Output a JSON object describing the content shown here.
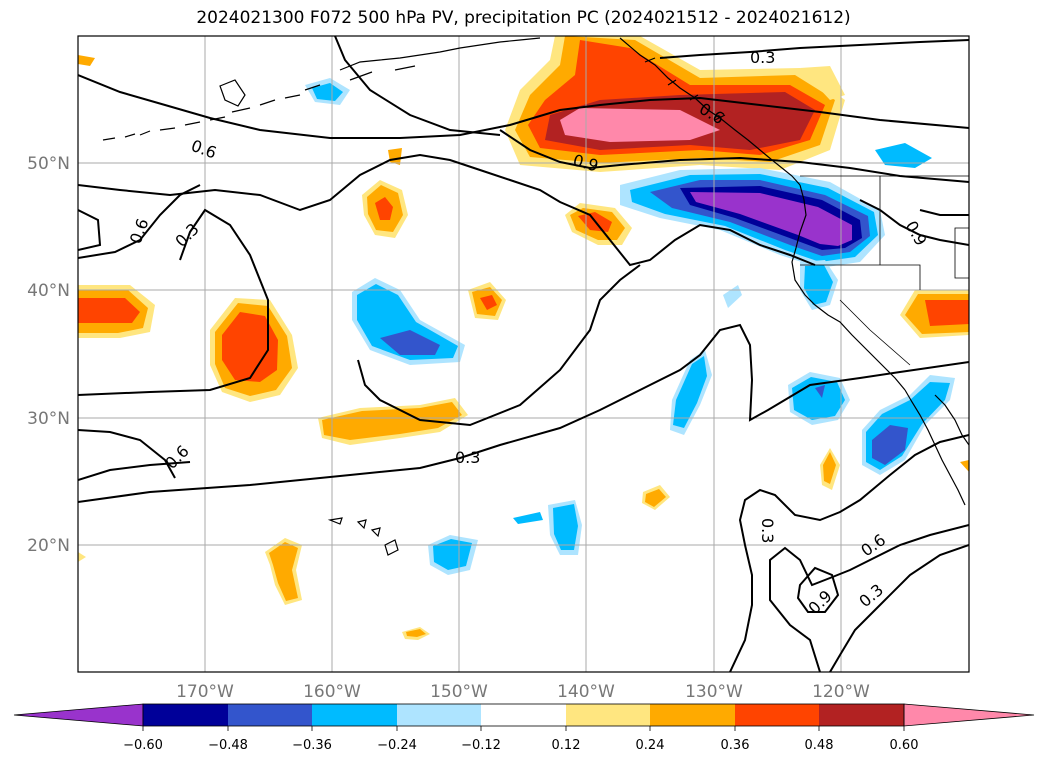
{
  "title": "2024021300 F072 500 hPa PV, precipitation PC (2024021512 - 2024021612)",
  "lat_labels": [
    "50°N",
    "40°N",
    "30°N",
    "20°N"
  ],
  "lon_labels": [
    "170°W",
    "160°W",
    "150°W",
    "140°W",
    "130°W",
    "120°W"
  ],
  "colorbar": {
    "ticks": [
      "−0.60",
      "−0.48",
      "−0.36",
      "−0.24",
      "−0.12",
      "0.12",
      "0.24",
      "0.36",
      "0.48",
      "0.60"
    ],
    "colors": [
      "#9933cc",
      "#000099",
      "#3355cc",
      "#00bbff",
      "#aee4ff",
      "#ffffff",
      "#ffe680",
      "#ffaa00",
      "#ff4400",
      "#b22222",
      "#ff88aa"
    ]
  },
  "contour_labels": [
    "0.3",
    "0.6",
    "0.6",
    "0.3",
    "0.9",
    "0.6",
    "0.6",
    "0.3",
    "0.3",
    "0.6",
    "0.9",
    "0.3",
    "0.9"
  ],
  "colors": {
    "contour": "#000000",
    "grid": "#aaaaaa",
    "tick_label": "#777777"
  }
}
